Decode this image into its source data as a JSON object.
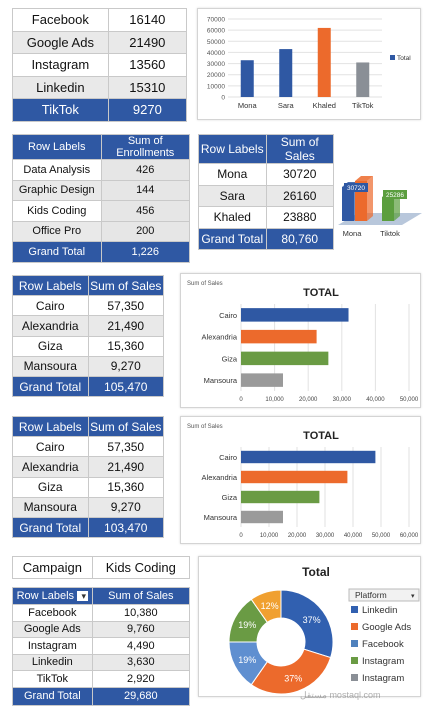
{
  "platform_table": {
    "rows": [
      {
        "label": "Facebook",
        "value": "16140"
      },
      {
        "label": "Google Ads",
        "value": "21490"
      },
      {
        "label": "Instagram",
        "value": "13560"
      },
      {
        "label": "Linkedin",
        "value": "15310"
      },
      {
        "label": "TikTok",
        "value": "9270"
      }
    ]
  },
  "enroll_table": {
    "headers": [
      "Row Labels",
      "Sum of Enrollments"
    ],
    "rows": [
      {
        "label": "Data Analysis",
        "value": "426"
      },
      {
        "label": "Graphic Design",
        "value": "144"
      },
      {
        "label": "Kids Coding",
        "value": "456"
      },
      {
        "label": "Office Pro",
        "value": "200"
      }
    ],
    "total_label": "Grand Total",
    "total_value": "1,226"
  },
  "sales_people_table": {
    "headers": [
      "Row Labels",
      "Sum of Sales"
    ],
    "rows": [
      {
        "label": "Mona",
        "value": "30720"
      },
      {
        "label": "Sara",
        "value": "26160"
      },
      {
        "label": "Khaled",
        "value": "23880"
      }
    ],
    "total_label": "Grand Total",
    "total_value": "80,760"
  },
  "city_table_1": {
    "headers": [
      "Row Labels",
      "Sum of Sales"
    ],
    "rows": [
      {
        "label": "Cairo",
        "value": "57,350"
      },
      {
        "label": "Alexandria",
        "value": "21,490"
      },
      {
        "label": "Giza",
        "value": "15,360"
      },
      {
        "label": "Mansoura",
        "value": "9,270"
      }
    ],
    "total_label": "Grand Total",
    "total_value": "105,470"
  },
  "city_table_2": {
    "headers": [
      "Row Labels",
      "Sum of Sales"
    ],
    "rows": [
      {
        "label": "Cairo",
        "value": "57,350"
      },
      {
        "label": "Alexandria",
        "value": "21,490"
      },
      {
        "label": "Giza",
        "value": "15,360"
      },
      {
        "label": "Mansoura",
        "value": "9,270"
      }
    ],
    "total_label": "Grand Total",
    "total_value": "103,470"
  },
  "campaign_table": {
    "filter_label": "Campaign",
    "filter_value": "Kids Coding",
    "headers": [
      "Row Labels",
      "Sum of Sales"
    ],
    "dropdown_glyph": "▾",
    "rows": [
      {
        "label": "Facebook",
        "value": "10,380"
      },
      {
        "label": "Google Ads",
        "value": "9,760"
      },
      {
        "label": "Instagram",
        "value": "4,490"
      },
      {
        "label": "Linkedin",
        "value": "3,630"
      },
      {
        "label": "TikTok",
        "value": "2,920"
      }
    ],
    "total_label": "Grand Total",
    "total_value": "29,680"
  },
  "watermark": "مستقل mostaql.com",
  "chart_data": [
    {
      "type": "bar",
      "categories": [
        "Mona",
        "Sara",
        "Khaled",
        "TikTok"
      ],
      "values": [
        33000,
        43000,
        62000,
        31000
      ],
      "colors": [
        "#2f58a3",
        "#2f58a3",
        "#ec6a2c",
        "#8a8f96"
      ],
      "yticks": [
        "0",
        "10000",
        "20000",
        "30000",
        "40000",
        "50000",
        "60000",
        "70000"
      ],
      "ylim": [
        0,
        70000
      ],
      "legend": "Total",
      "legend_placement": "right"
    },
    {
      "type": "bar",
      "categories": [
        "Mona",
        "Tiktok"
      ],
      "data_labels": [
        "30720",
        "25286"
      ],
      "colors": [
        "#2f58a3",
        "#ec6a2c",
        "#5b9e3e"
      ],
      "style": "3d-column"
    },
    {
      "type": "bar",
      "orientation": "horizontal",
      "title": "TOTAL",
      "corner_label": "Sum of Sales",
      "categories": [
        "Cairo",
        "Alexandria",
        "Giza",
        "Mansoura"
      ],
      "values": [
        32000,
        22500,
        26000,
        12500
      ],
      "colors": [
        "#2f58a3",
        "#ec6a2c",
        "#6a9b44",
        "#9a9a9a"
      ],
      "xticks": [
        "0",
        "10,000",
        "20,000",
        "30,000",
        "40,000",
        "50,000"
      ],
      "xlim": [
        0,
        50000
      ]
    },
    {
      "type": "bar",
      "orientation": "horizontal",
      "title": "TOTAL",
      "corner_label": "Sum of Sales",
      "categories": [
        "Cairo",
        "Alexandria",
        "Giza",
        "Mansoura"
      ],
      "values": [
        48000,
        38000,
        28000,
        15000
      ],
      "colors": [
        "#2f58a3",
        "#ec6a2c",
        "#6a9b44",
        "#9a9a9a"
      ],
      "xticks": [
        "0",
        "10,000",
        "20,000",
        "30,000",
        "40,000",
        "50,000",
        "60,000"
      ],
      "xlim": [
        0,
        60000
      ]
    },
    {
      "type": "pie",
      "style": "donut",
      "title": "Total",
      "legend_title": "Platform",
      "legend": [
        "Linkedin",
        "Google Ads",
        "Facebook",
        "Instagram",
        "Instagram"
      ],
      "legend_colors": [
        "#3160b0",
        "#ec6a2c",
        "#4f81bd",
        "#6a9b44",
        "#8a8f96"
      ],
      "slices": [
        {
          "label": "37%",
          "value": 37,
          "color": "#3160b0"
        },
        {
          "label": "37%",
          "value": 37,
          "color": "#ec6a2c"
        },
        {
          "label": "19%",
          "value": 19,
          "color": "#5f8fd0"
        },
        {
          "label": "19%",
          "value": 19,
          "color": "#6a9b44"
        },
        {
          "label": "12%",
          "value": 12,
          "color": "#f0a030"
        }
      ]
    }
  ]
}
